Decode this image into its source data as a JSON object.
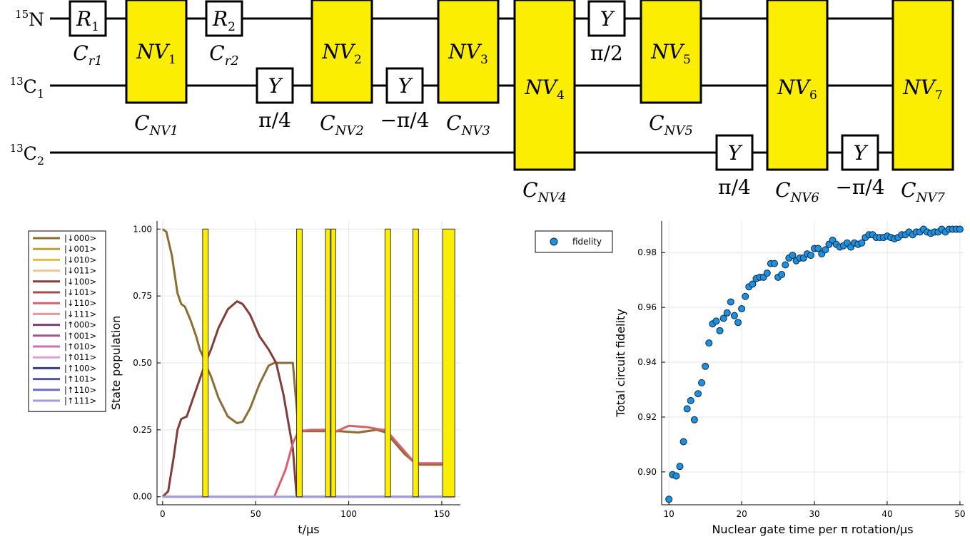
{
  "circuit": {
    "wires": [
      {
        "mass": "15",
        "element": "N",
        "sub": ""
      },
      {
        "mass": "13",
        "element": "C",
        "sub": "1"
      },
      {
        "mass": "13",
        "element": "C",
        "sub": "2"
      }
    ],
    "gates": [
      {
        "kind": "box",
        "base": "R",
        "sub": "1",
        "wires": [
          0
        ],
        "label_base": "C",
        "label_sub": "r1"
      },
      {
        "kind": "nv",
        "base": "NV",
        "sub": "1",
        "wires": [
          0,
          1
        ],
        "label_base": "C",
        "label_sub": "NV1"
      },
      {
        "kind": "box",
        "base": "R",
        "sub": "2",
        "wires": [
          0
        ],
        "label_base": "C",
        "label_sub": "r2"
      },
      {
        "kind": "box",
        "base": "Y",
        "sub": "",
        "wires": [
          1
        ],
        "label_base": "π/4",
        "label_sub": ""
      },
      {
        "kind": "nv",
        "base": "NV",
        "sub": "2",
        "wires": [
          0,
          1
        ],
        "label_base": "C",
        "label_sub": "NV2"
      },
      {
        "kind": "box",
        "base": "Y",
        "sub": "",
        "wires": [
          1
        ],
        "label_base": "−π/4",
        "label_sub": ""
      },
      {
        "kind": "nv",
        "base": "NV",
        "sub": "3",
        "wires": [
          0,
          1
        ],
        "label_base": "C",
        "label_sub": "NV3"
      },
      {
        "kind": "nv",
        "base": "NV",
        "sub": "4",
        "wires": [
          0,
          1,
          2
        ],
        "label_base": "C",
        "label_sub": "NV4"
      },
      {
        "kind": "box",
        "base": "Y",
        "sub": "",
        "wires": [
          0
        ],
        "label_base": "π/2",
        "label_sub": ""
      },
      {
        "kind": "nv",
        "base": "NV",
        "sub": "5",
        "wires": [
          0,
          1
        ],
        "label_base": "C",
        "label_sub": "NV5"
      },
      {
        "kind": "box",
        "base": "Y",
        "sub": "",
        "wires": [
          2
        ],
        "label_base": "π/4",
        "label_sub": ""
      },
      {
        "kind": "nv",
        "base": "NV",
        "sub": "6",
        "wires": [
          0,
          1,
          2
        ],
        "label_base": "C",
        "label_sub": "NV6"
      },
      {
        "kind": "box",
        "base": "Y",
        "sub": "",
        "wires": [
          2
        ],
        "label_base": "−π/4",
        "label_sub": ""
      },
      {
        "kind": "nv",
        "base": "NV",
        "sub": "7",
        "wires": [
          0,
          1,
          2
        ],
        "label_base": "C",
        "label_sub": "NV7"
      }
    ],
    "colors": {
      "nv_fill": "#FBEE00",
      "box_fill": "#ffffff",
      "stroke": "#000000"
    }
  },
  "chart_data": [
    {
      "type": "line",
      "xlabel": "t/μs",
      "ylabel": "State population",
      "xlim": [
        -3,
        160
      ],
      "ylim": [
        -0.03,
        1.03
      ],
      "xticks": [
        0,
        50,
        100,
        150
      ],
      "yticks": [
        0.0,
        0.25,
        0.5,
        0.75,
        1.0
      ],
      "ytick_labels": [
        "0.00",
        "0.25",
        "0.50",
        "0.75",
        "1.00"
      ],
      "grid": true,
      "legend_position": "outside-left",
      "pulses": [
        [
          21.5,
          24.5
        ],
        [
          72,
          75
        ],
        [
          87.5,
          90
        ],
        [
          90.5,
          93
        ],
        [
          119.5,
          122.5
        ],
        [
          134.5,
          137.5
        ],
        [
          150.5,
          157
        ]
      ],
      "pulse_color": "#FBEE00",
      "series": [
        {
          "name": "|↓000>",
          "color": "#8C6D31",
          "x": [
            0,
            2,
            5,
            8,
            10,
            12,
            15,
            18,
            20,
            22,
            24,
            26,
            30,
            35,
            40,
            43,
            47,
            52,
            57,
            60,
            65,
            70,
            73,
            75,
            80,
            85,
            88,
            95,
            105,
            115,
            120,
            125,
            130,
            135,
            138,
            145,
            150,
            155
          ],
          "y": [
            1.0,
            0.99,
            0.9,
            0.76,
            0.72,
            0.71,
            0.66,
            0.6,
            0.55,
            0.52,
            0.48,
            0.45,
            0.37,
            0.3,
            0.275,
            0.28,
            0.33,
            0.42,
            0.49,
            0.5,
            0.5,
            0.5,
            0.25,
            0.245,
            0.245,
            0.245,
            0.245,
            0.245,
            0.24,
            0.25,
            0.24,
            0.2,
            0.16,
            0.13,
            0.12,
            0.12,
            0.12,
            0.12
          ]
        },
        {
          "name": "|↓001>",
          "color": "#BD9E39",
          "x": [],
          "y": []
        },
        {
          "name": "|↓010>",
          "color": "#E7BA52",
          "x": [],
          "y": []
        },
        {
          "name": "|↓011>",
          "color": "#E7CB94",
          "x": [],
          "y": []
        },
        {
          "name": "|↓100>",
          "color": "#843C39",
          "x": [
            0,
            3,
            6,
            8,
            10,
            13,
            16,
            20,
            23,
            26,
            30,
            35,
            40,
            43,
            47,
            52,
            57,
            61,
            65,
            70,
            72,
            80,
            88,
            95,
            105,
            115,
            120,
            125,
            130,
            135,
            138,
            145,
            155
          ],
          "y": [
            0.0,
            0.02,
            0.15,
            0.25,
            0.29,
            0.3,
            0.36,
            0.44,
            0.5,
            0.55,
            0.63,
            0.7,
            0.73,
            0.72,
            0.68,
            0.6,
            0.55,
            0.5,
            0.38,
            0.18,
            0.0,
            0.0,
            0.0,
            0.0,
            0.0,
            0.0,
            0.0,
            0.0,
            0.0,
            0.0,
            0.0,
            0.0,
            0.0
          ]
        },
        {
          "name": "|↓101>",
          "color": "#AD494A",
          "x": [],
          "y": []
        },
        {
          "name": "|↓110>",
          "color": "#D6616B",
          "x": [
            0,
            60,
            66,
            70,
            73,
            80,
            88,
            92,
            100,
            110,
            118,
            120,
            125,
            130,
            135,
            138,
            150,
            155
          ],
          "y": [
            0.0,
            0.0,
            0.1,
            0.2,
            0.245,
            0.25,
            0.25,
            0.24,
            0.265,
            0.26,
            0.25,
            0.25,
            0.21,
            0.17,
            0.13,
            0.125,
            0.125,
            0.125
          ]
        },
        {
          "name": "|↓111>",
          "color": "#E7969C",
          "x": [],
          "y": []
        },
        {
          "name": "|↑000>",
          "color": "#7B4173",
          "x": [],
          "y": []
        },
        {
          "name": "|↑001>",
          "color": "#A55194",
          "x": [],
          "y": []
        },
        {
          "name": "|↑010>",
          "color": "#CE6DBD",
          "x": [],
          "y": []
        },
        {
          "name": "|↑011>",
          "color": "#DE9ED6",
          "x": [],
          "y": []
        },
        {
          "name": "|↑100>",
          "color": "#393B79",
          "x": [],
          "y": []
        },
        {
          "name": "|↑101>",
          "color": "#5254A3",
          "x": [],
          "y": []
        },
        {
          "name": "|↑110>",
          "color": "#6B6ECF",
          "x": [],
          "y": []
        },
        {
          "name": "|↑111>",
          "color": "#9C9EDE",
          "x": [],
          "y": []
        }
      ]
    },
    {
      "type": "scatter",
      "xlabel": "Nuclear gate time per π rotation/μs",
      "ylabel": "Total circuit fidelity",
      "xlim": [
        9,
        50.5
      ],
      "ylim": [
        0.888,
        0.9915
      ],
      "xticks": [
        10,
        20,
        30,
        40,
        50
      ],
      "yticks": [
        0.9,
        0.92,
        0.94,
        0.96,
        0.98
      ],
      "ytick_labels": [
        "0.90",
        "0.92",
        "0.94",
        "0.96",
        "0.98"
      ],
      "grid": true,
      "legend_position": "top-left",
      "series": [
        {
          "name": "fidelity",
          "color": "#1E90E0",
          "x": [
            10.0,
            10.5,
            11.0,
            11.5,
            12.0,
            12.5,
            13.0,
            13.5,
            14.0,
            14.5,
            15.0,
            15.5,
            16.0,
            16.5,
            17.0,
            17.5,
            18.0,
            18.5,
            19.0,
            19.5,
            20.0,
            20.5,
            21.0,
            21.5,
            22.0,
            22.5,
            23.0,
            23.5,
            24.0,
            24.5,
            25.0,
            25.5,
            26.0,
            26.5,
            27.0,
            27.5,
            28.0,
            28.5,
            29.0,
            29.5,
            30.0,
            30.5,
            31.0,
            31.5,
            32.0,
            32.5,
            33.0,
            33.5,
            34.0,
            34.5,
            35.0,
            35.5,
            36.0,
            36.5,
            37.0,
            37.5,
            38.0,
            38.5,
            39.0,
            39.5,
            40.0,
            40.5,
            41.0,
            41.5,
            42.0,
            42.5,
            43.0,
            43.5,
            44.0,
            44.5,
            45.0,
            45.5,
            46.0,
            46.5,
            47.0,
            47.5,
            48.0,
            48.5,
            49.0,
            49.5,
            50.0
          ],
          "y": [
            0.89,
            0.899,
            0.8985,
            0.902,
            0.911,
            0.923,
            0.926,
            0.919,
            0.9285,
            0.9325,
            0.9385,
            0.947,
            0.954,
            0.955,
            0.9515,
            0.956,
            0.958,
            0.962,
            0.957,
            0.9545,
            0.9595,
            0.964,
            0.9675,
            0.9685,
            0.9705,
            0.971,
            0.971,
            0.9725,
            0.976,
            0.976,
            0.971,
            0.972,
            0.9755,
            0.978,
            0.979,
            0.977,
            0.978,
            0.978,
            0.9795,
            0.979,
            0.9815,
            0.9815,
            0.9795,
            0.981,
            0.983,
            0.9845,
            0.983,
            0.982,
            0.9825,
            0.9835,
            0.982,
            0.9835,
            0.983,
            0.9835,
            0.9855,
            0.9865,
            0.9865,
            0.9855,
            0.9855,
            0.9855,
            0.986,
            0.9855,
            0.985,
            0.9855,
            0.9865,
            0.9865,
            0.9875,
            0.9865,
            0.9875,
            0.9875,
            0.9885,
            0.9875,
            0.987,
            0.9875,
            0.9875,
            0.9885,
            0.9875,
            0.9885,
            0.9885,
            0.9885,
            0.9885
          ]
        }
      ]
    }
  ]
}
